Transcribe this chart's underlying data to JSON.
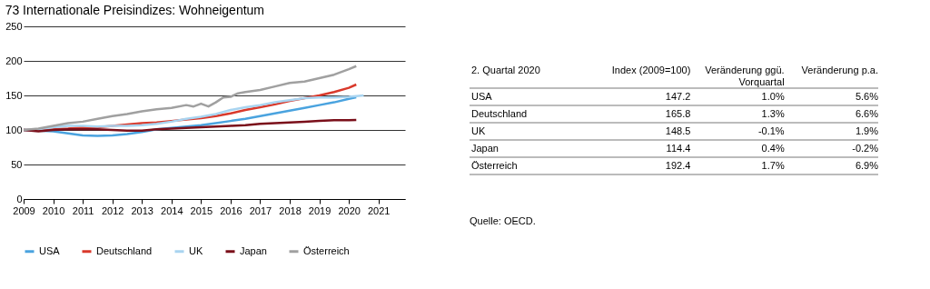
{
  "chart_data": [
    {
      "type": "line",
      "title": "73  Internationale Preisindizes: Wohneigentum",
      "xlim": [
        2009,
        2021.9
      ],
      "xticks": [
        2009,
        2010,
        2011,
        2012,
        2013,
        2014,
        2015,
        2016,
        2017,
        2018,
        2019,
        2020,
        2021
      ],
      "ylim": [
        0,
        250
      ],
      "yticks": [
        0,
        50,
        100,
        150,
        200,
        250
      ],
      "grid": "y",
      "legend": "bottom",
      "marker": "none",
      "line_style": "solid",
      "series": [
        {
          "name": "USA",
          "color": "#4aa3df",
          "x": [
            2009,
            2009.5,
            2010,
            2010.5,
            2011,
            2011.5,
            2012,
            2012.5,
            2013,
            2013.5,
            2014,
            2014.5,
            2015,
            2015.5,
            2016,
            2016.5,
            2017,
            2017.5,
            2018,
            2018.5,
            2019,
            2019.5,
            2020,
            2020.25
          ],
          "values": [
            100,
            99,
            98,
            95,
            92,
            91.5,
            92,
            94,
            97,
            101,
            103,
            105,
            107,
            110,
            113,
            116,
            120,
            124,
            128,
            132,
            136,
            140,
            145,
            147.2
          ]
        },
        {
          "name": "Deutschland",
          "color": "#d9392b",
          "x": [
            2009,
            2010,
            2010.5,
            2011,
            2011.5,
            2012,
            2012.5,
            2013,
            2013.5,
            2014,
            2014.5,
            2015,
            2015.5,
            2016,
            2016.5,
            2017,
            2017.5,
            2018,
            2018.5,
            2019,
            2019.5,
            2020,
            2020.25
          ],
          "values": [
            100,
            101,
            102,
            104,
            104,
            106,
            108,
            110,
            111,
            113,
            115,
            117,
            120,
            124,
            129,
            133,
            137,
            142,
            146,
            150,
            155,
            161,
            165.8
          ]
        },
        {
          "name": "UK",
          "color": "#a9d4f0",
          "x": [
            2009,
            2009.5,
            2010,
            2010.5,
            2011,
            2011.5,
            2012,
            2012.5,
            2013,
            2013.5,
            2014,
            2014.5,
            2015,
            2015.5,
            2016,
            2016.5,
            2017,
            2017.5,
            2018,
            2018.5,
            2019,
            2019.5,
            2020,
            2020.5
          ],
          "values": [
            100,
            101,
            104,
            106,
            106,
            105,
            106,
            106,
            107,
            109,
            112,
            116,
            119,
            123,
            129,
            133,
            136,
            140,
            143,
            146,
            147,
            147,
            148,
            150
          ]
        },
        {
          "name": "Japan",
          "color": "#7a0f1a",
          "x": [
            2009,
            2009.5,
            2010,
            2010.5,
            2011,
            2011.5,
            2012,
            2012.5,
            2013,
            2013.5,
            2014,
            2014.5,
            2015,
            2015.5,
            2016,
            2016.5,
            2017,
            2017.5,
            2018,
            2018.5,
            2019,
            2019.5,
            2020,
            2020.25
          ],
          "values": [
            100,
            98,
            100,
            101,
            101,
            101,
            100,
            99,
            99,
            101,
            102,
            103,
            104,
            105,
            106,
            107,
            109,
            110,
            111,
            112,
            113,
            114,
            114,
            114.4
          ]
        },
        {
          "name": "Österreich",
          "color": "#a0a0a0",
          "x": [
            2009,
            2009.5,
            2010,
            2010.5,
            2011,
            2011.5,
            2012,
            2012.5,
            2013,
            2013.5,
            2014,
            2014.5,
            2014.75,
            2015,
            2015.25,
            2015.5,
            2015.75,
            2016,
            2016.25,
            2016.5,
            2017,
            2017.5,
            2018,
            2018.5,
            2019,
            2019.5,
            2020,
            2020.25
          ],
          "values": [
            100,
            102,
            106,
            110,
            112,
            116,
            120,
            123,
            127,
            130,
            132,
            136,
            134,
            138,
            134,
            140,
            147,
            148,
            153,
            155,
            158,
            163,
            168,
            170,
            175,
            180,
            188,
            192.4
          ]
        }
      ]
    },
    {
      "type": "other",
      "title": "2. Quartal 2020",
      "data_labels": true,
      "categories": [
        "USA",
        "Deutschland",
        "UK",
        "Japan",
        "Österreich"
      ],
      "series": [
        {
          "name": "Index (2009=100)",
          "values": [
            147.2,
            165.8,
            148.5,
            114.4,
            192.4
          ]
        },
        {
          "name": "Veränderung ggü. Vorquartal",
          "values": [
            1.0,
            1.3,
            -0.1,
            0.4,
            1.7
          ],
          "value_labels": [
            "1.0%",
            "1.3%",
            "-0.1%",
            "0.4%",
            "1.7%"
          ]
        },
        {
          "name": "Veränderung p.a.",
          "values": [
            5.6,
            6.6,
            1.9,
            -0.2,
            6.9
          ],
          "value_labels": [
            "5.6%",
            "6.6%",
            "1.9%",
            "-0.2%",
            "6.9%"
          ]
        }
      ],
      "annotations": [
        "Quelle: OECD."
      ]
    }
  ]
}
